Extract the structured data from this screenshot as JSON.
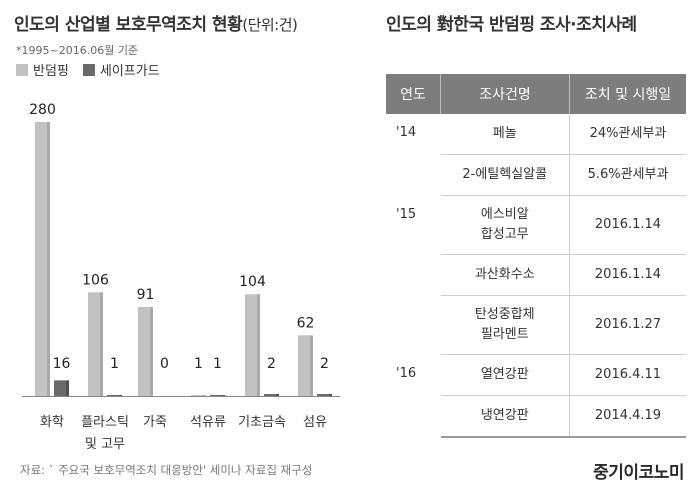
{
  "left": {
    "title": "인도의 산업별 보호무역조치 현황",
    "unit": "(단위:건)",
    "note": "*1995~2016.06월 기준"
  },
  "chart_data": {
    "type": "bar",
    "categories": [
      "화학",
      "플라스틱 및 고무",
      "가죽",
      "석유류",
      "기초금속",
      "섬유"
    ],
    "category_lines": [
      [
        "화학"
      ],
      [
        "플라스틱",
        "및 고무"
      ],
      [
        "가죽"
      ],
      [
        "석유류"
      ],
      [
        "기초금속"
      ],
      [
        "섬유"
      ]
    ],
    "series": [
      {
        "name": "반덤핑",
        "values": [
          280,
          106,
          91,
          1,
          104,
          62
        ],
        "color": "#c2c2c2"
      },
      {
        "name": "세이프가드",
        "values": [
          16,
          1,
          0,
          1,
          2,
          2
        ],
        "color": "#6a6a6a"
      }
    ],
    "ylim": [
      0,
      280
    ],
    "legend": "top-left",
    "grid": false
  },
  "source": "자료: ` 주요국 보호무역조치 대응방안' 세미나 자료집 재구성",
  "right": {
    "title": "인도의 對한국 반덤핑 조사·조치사례",
    "headers": {
      "year": "연도",
      "item": "조사건명",
      "action": "조치 및 시행일"
    },
    "groups": [
      {
        "year": "'14",
        "rows": [
          {
            "item": [
              "페놀"
            ],
            "action": "24%관세부과"
          },
          {
            "item": [
              "2-에틸헥실알콜"
            ],
            "action": "5.6%관세부과"
          }
        ]
      },
      {
        "year": "'15",
        "rows": [
          {
            "item": [
              "에스비알",
              "합성고무"
            ],
            "action": "2016.1.14"
          },
          {
            "item": [
              "과산화수소"
            ],
            "action": "2016.1.14"
          },
          {
            "item": [
              "탄성중합체",
              "필라멘트"
            ],
            "action": "2016.1.27"
          }
        ]
      },
      {
        "year": "'16",
        "rows": [
          {
            "item": [
              "열연강판"
            ],
            "action": "2016.4.11"
          },
          {
            "item": [
              "냉연강판"
            ],
            "action": "2014.4.19"
          }
        ]
      }
    ]
  },
  "brand": "중기이코노미"
}
